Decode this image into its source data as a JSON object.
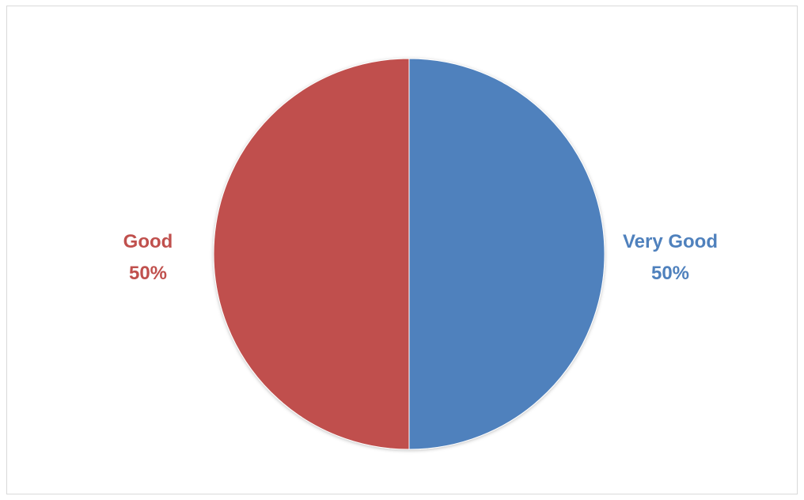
{
  "chart_data": {
    "type": "pie",
    "title": "",
    "categories": [
      "Very Good",
      "Good"
    ],
    "values": [
      50,
      50
    ],
    "value_labels": [
      "50%",
      "50%"
    ],
    "start_angle_deg": 0,
    "direction": "clockwise",
    "legend": "none",
    "data_labels": "outside",
    "colors": [
      "#4f81bd",
      "#c0504d"
    ]
  }
}
